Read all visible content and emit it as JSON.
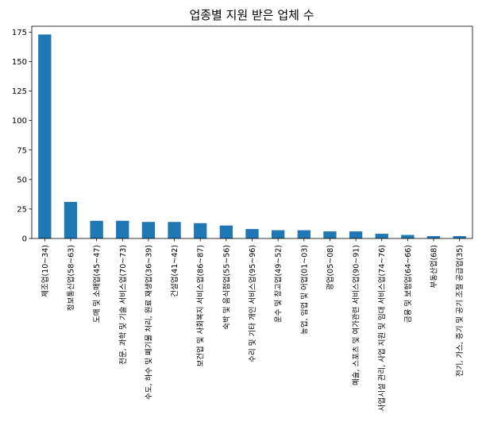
{
  "chart_data": {
    "type": "bar",
    "title": "업종별 지원 받은 업체 수",
    "xlabel": "",
    "ylabel": "",
    "ylim": [
      0,
      180
    ],
    "yticks": [
      0,
      25,
      50,
      75,
      100,
      125,
      150,
      175
    ],
    "grid": false,
    "bar_color": "#1f77b4",
    "categories": [
      "제조업(10~34)",
      "정보통신업(58~63)",
      "도매 및 소매업(45~47)",
      "전문, 과학 및 기술 서비스업(70~73)",
      "수도, 하수 및 폐기물 처리, 원료 재생업(36~39)",
      "건설업(41~42)",
      "보건업 및 사회복지 서비스업(86~87)",
      "숙박 및 음식점업(55~56)",
      "수리 및 기타 개인 서비스업(95~96)",
      "운수 및 창고업(49~52)",
      "농업, 임업 및 어업(01~03)",
      "광업(05~08)",
      "예술, 스포츠 및 여가관련 서비스업(90~91)",
      "사업시설 관리, 사업 지원 및 임대 서비스업(74~76)",
      "금융 및 보험업(64~66)",
      "부동산업(68)",
      "전기, 가스, 증기 및 공기 조절 공급업(35)"
    ],
    "values": [
      173,
      31,
      15,
      15,
      14,
      14,
      13,
      11,
      8,
      7,
      7,
      6,
      6,
      4,
      3,
      2,
      2
    ]
  }
}
